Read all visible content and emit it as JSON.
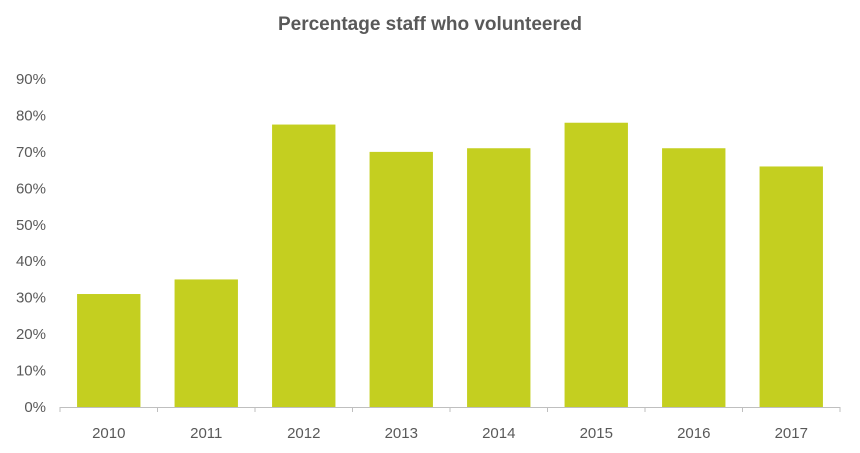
{
  "chart_data": {
    "type": "bar",
    "title": "Percentage staff who volunteered",
    "categories": [
      "2010",
      "2011",
      "2012",
      "2013",
      "2014",
      "2015",
      "2016",
      "2017"
    ],
    "values": [
      31,
      35,
      77.5,
      70,
      71,
      78,
      71,
      66
    ],
    "ylim": [
      0,
      90
    ],
    "yticks": [
      "0%",
      "10%",
      "20%",
      "30%",
      "40%",
      "50%",
      "60%",
      "70%",
      "80%",
      "90%"
    ],
    "xlabel": "",
    "ylabel": "",
    "grid": false,
    "bar_color": "#c4cf20",
    "axis_color": "#bfbfbf",
    "text_color": "#595959"
  }
}
